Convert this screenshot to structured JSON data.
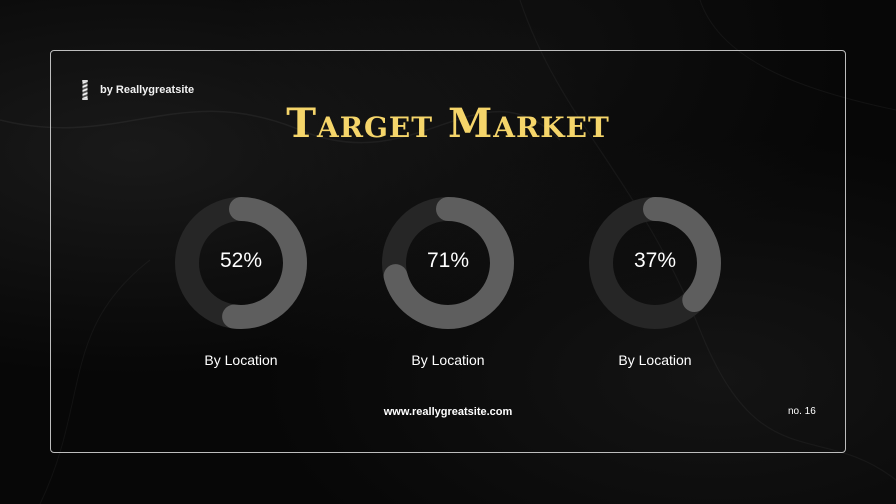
{
  "brand": {
    "text": "by Reallygreatsite",
    "icon": "barber-pole-icon"
  },
  "title": "Target Market",
  "donuts": [
    {
      "value": "52%",
      "fraction": 0.52,
      "label": "By Location"
    },
    {
      "value": "71%",
      "fraction": 0.71,
      "label": "By Location"
    },
    {
      "value": "37%",
      "fraction": 0.37,
      "label": "By Location"
    }
  ],
  "footer": {
    "url": "www.reallygreatsite.com",
    "page": "no. 16"
  },
  "colors": {
    "background": "#080808",
    "title": "#f5d56a",
    "ring_track": "#262626",
    "ring_fill": "#5e5e5e",
    "text": "#ffffff"
  }
}
